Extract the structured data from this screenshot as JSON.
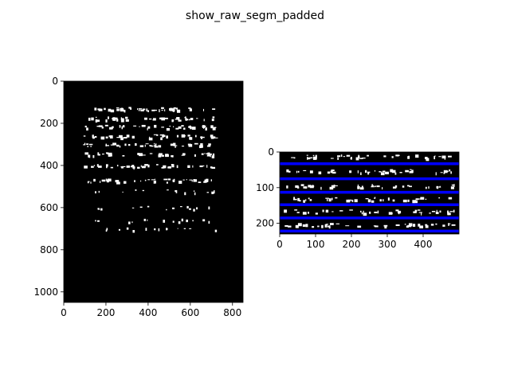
{
  "figure": {
    "title": "show_raw_segm_padded"
  },
  "chart_data": [
    {
      "type": "image",
      "description_role": "left-panel-raw-binarized-manuscript",
      "xlim": [
        0,
        850
      ],
      "ylim": [
        1050,
        0
      ],
      "xticks": [
        "0",
        "200",
        "400",
        "600",
        "800"
      ],
      "yticks": [
        "0",
        "200",
        "400",
        "600",
        "800",
        "1000"
      ],
      "xtick_values": [
        0,
        200,
        400,
        600,
        800
      ],
      "ytick_values": [
        0,
        200,
        400,
        600,
        800,
        1000
      ],
      "text_rows_data_y": [
        130,
        175,
        215,
        260,
        300,
        345,
        400,
        470,
        520,
        600,
        660,
        700
      ],
      "colors": {
        "background": "#000000",
        "ink": "#ffffff"
      }
    },
    {
      "type": "image",
      "description_role": "right-panel-padded-segmentation",
      "xlim": [
        0,
        500
      ],
      "ylim": [
        230,
        0
      ],
      "xticks": [
        "0",
        "100",
        "200",
        "300",
        "400"
      ],
      "yticks": [
        "0",
        "100",
        "200"
      ],
      "xtick_values": [
        0,
        100,
        200,
        300,
        400
      ],
      "ytick_values": [
        0,
        100,
        200
      ],
      "segment_lines_y": [
        33,
        75,
        113,
        148,
        185,
        222
      ],
      "text_rows_data_y": [
        12,
        53,
        94,
        131,
        166,
        203
      ],
      "colors": {
        "background": "#000000",
        "ink": "#ffffff",
        "segment_line": "#0000ff"
      }
    }
  ]
}
